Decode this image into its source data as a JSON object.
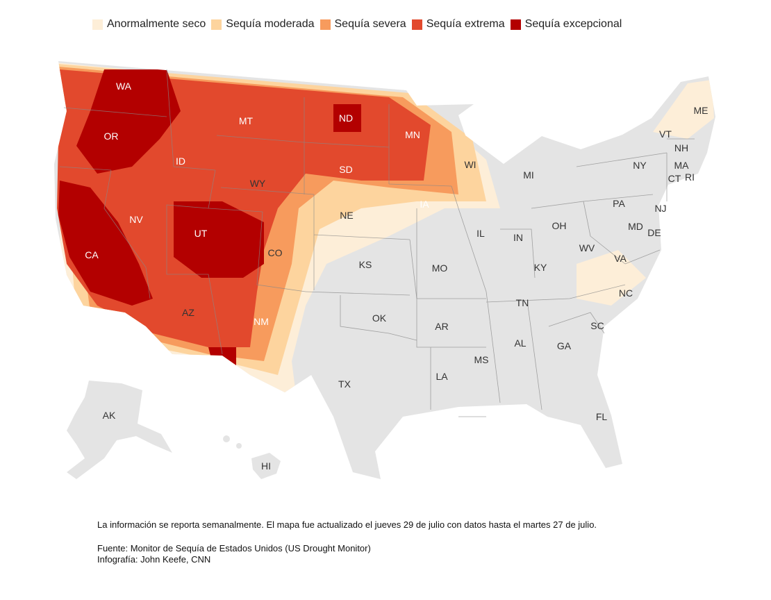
{
  "legend": {
    "items": [
      {
        "label": "Anormalmente seco",
        "color": "#fdeed8"
      },
      {
        "label": "Sequía moderada",
        "color": "#fdd49e"
      },
      {
        "label": "Sequía severa",
        "color": "#f79b5d"
      },
      {
        "label": "Sequía extrema",
        "color": "#e2492d"
      },
      {
        "label": "Sequía excepcional",
        "color": "#b30000"
      }
    ]
  },
  "map": {
    "no_drought_color": "#e4e4e4",
    "state_labels": [
      "WA",
      "OR",
      "CA",
      "ID",
      "NV",
      "MT",
      "WY",
      "UT",
      "AZ",
      "CO",
      "NM",
      "ND",
      "SD",
      "NE",
      "KS",
      "OK",
      "TX",
      "MN",
      "IA",
      "MO",
      "AR",
      "LA",
      "WI",
      "IL",
      "MS",
      "MI",
      "IN",
      "KY",
      "TN",
      "AL",
      "GA",
      "FL",
      "SC",
      "NC",
      "OH",
      "WV",
      "VA",
      "PA",
      "NY",
      "VT",
      "NH",
      "ME",
      "MA",
      "CT",
      "RI",
      "NJ",
      "DE",
      "MD",
      "AK",
      "HI"
    ]
  },
  "footer": {
    "note": "La información se reporta semanalmente. El mapa fue actualizado el jueves 29 de julio con datos hasta el martes 27 de julio.",
    "source": "Fuente: Monitor de Sequía de Estados Unidos (US Drought Monitor)",
    "credit": "Infografía: John Keefe, CNN"
  }
}
